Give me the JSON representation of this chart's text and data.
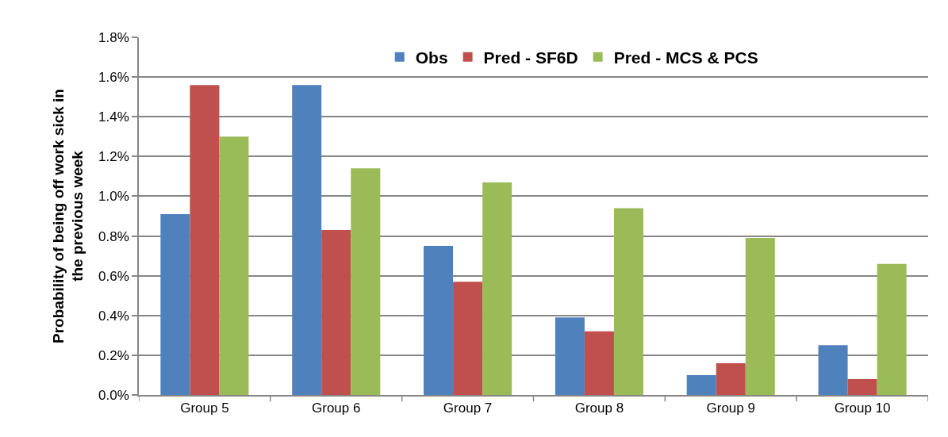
{
  "chart_data": {
    "type": "bar",
    "categories": [
      "Group 5",
      "Group 6",
      "Group 7",
      "Group 8",
      "Group 9",
      "Group 10"
    ],
    "series": [
      {
        "name": "Obs",
        "color": "#4f81bd",
        "values": [
          0.91,
          1.56,
          0.75,
          0.39,
          0.1,
          0.25
        ]
      },
      {
        "name": "Pred - SF6D",
        "color": "#c0504d",
        "values": [
          1.56,
          0.83,
          0.57,
          0.32,
          0.16,
          0.08
        ]
      },
      {
        "name": "Pred - MCS & PCS",
        "color": "#9bbb59",
        "values": [
          1.3,
          1.14,
          1.07,
          0.94,
          0.79,
          0.66
        ]
      }
    ],
    "ylabel": "Probability of being off work sick in\nthe previous week",
    "ylim": [
      0,
      1.8
    ],
    "yticks": [
      {
        "value": 0,
        "label": "0.0%"
      },
      {
        "value": 0.2,
        "label": "0.2%"
      },
      {
        "value": 0.4,
        "label": "0.4%"
      },
      {
        "value": 0.6,
        "label": "0.6%"
      },
      {
        "value": 0.8,
        "label": "0.8%"
      },
      {
        "value": 1.0,
        "label": "1.0%"
      },
      {
        "value": 1.2,
        "label": "1.2%"
      },
      {
        "value": 1.4,
        "label": "1.4%"
      },
      {
        "value": 1.6,
        "label": "1.6%"
      },
      {
        "value": 1.8,
        "label": "1.8%"
      }
    ],
    "grid": "y",
    "legend": "top"
  }
}
